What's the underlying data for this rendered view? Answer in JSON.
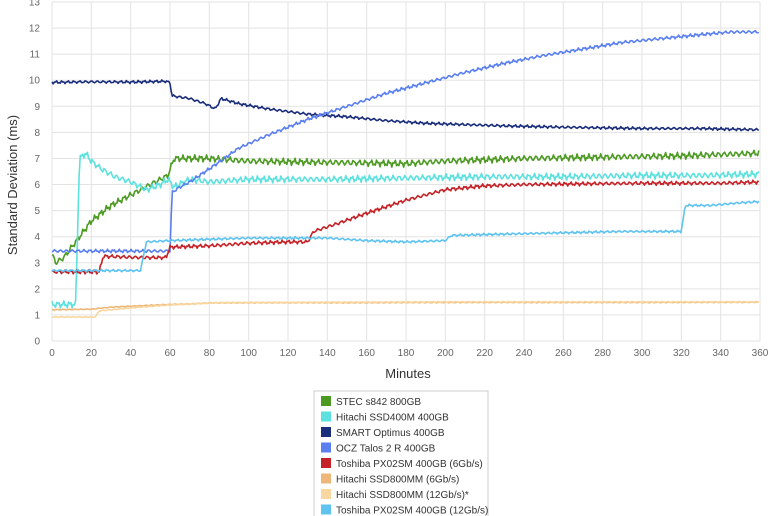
{
  "chart_data": {
    "type": "line",
    "title": "",
    "xlabel": "Minutes",
    "ylabel": "Standard Deviation (ms)",
    "xlim": [
      0,
      360
    ],
    "ylim": [
      0,
      13
    ],
    "xticks": [
      0,
      20,
      40,
      60,
      80,
      100,
      120,
      140,
      160,
      180,
      200,
      220,
      240,
      260,
      280,
      300,
      320,
      340,
      360
    ],
    "yticks": [
      0,
      1,
      2,
      3,
      4,
      5,
      6,
      7,
      8,
      9,
      10,
      11,
      12,
      13
    ],
    "grid": true,
    "legend_position": "bottom",
    "series": [
      {
        "name": "STEC s842 800GB",
        "color": "#4c9a22",
        "noise": 0.14,
        "points": [
          [
            0,
            3.3
          ],
          [
            2,
            3.0
          ],
          [
            6,
            3.2
          ],
          [
            10,
            3.6
          ],
          [
            14,
            4.0
          ],
          [
            20,
            4.6
          ],
          [
            30,
            5.2
          ],
          [
            40,
            5.6
          ],
          [
            50,
            6.0
          ],
          [
            59,
            6.35
          ],
          [
            62,
            7.0
          ],
          [
            80,
            7.0
          ],
          [
            100,
            6.9
          ],
          [
            140,
            6.85
          ],
          [
            180,
            6.8
          ],
          [
            200,
            6.9
          ],
          [
            240,
            7.0
          ],
          [
            280,
            7.05
          ],
          [
            320,
            7.1
          ],
          [
            360,
            7.2
          ]
        ]
      },
      {
        "name": "Hitachi SSD400M 400GB",
        "color": "#5ce1de",
        "noise": 0.14,
        "points": [
          [
            0,
            1.4
          ],
          [
            12,
            1.4
          ],
          [
            14,
            7.0
          ],
          [
            17,
            7.2
          ],
          [
            20,
            6.9
          ],
          [
            25,
            6.6
          ],
          [
            32,
            6.3
          ],
          [
            40,
            6.1
          ],
          [
            48,
            5.8
          ],
          [
            55,
            6.0
          ],
          [
            59,
            6.2
          ],
          [
            62,
            5.9
          ],
          [
            70,
            6.2
          ],
          [
            80,
            6.1
          ],
          [
            100,
            6.2
          ],
          [
            140,
            6.2
          ],
          [
            180,
            6.25
          ],
          [
            220,
            6.3
          ],
          [
            260,
            6.3
          ],
          [
            300,
            6.35
          ],
          [
            330,
            6.35
          ],
          [
            360,
            6.4
          ]
        ]
      },
      {
        "name": "SMART Optimus 400GB",
        "color": "#1a2d7a",
        "noise": 0.06,
        "points": [
          [
            0,
            9.92
          ],
          [
            20,
            9.94
          ],
          [
            40,
            9.93
          ],
          [
            58,
            9.96
          ],
          [
            60,
            9.9
          ],
          [
            61,
            9.4
          ],
          [
            70,
            9.3
          ],
          [
            78,
            9.1
          ],
          [
            83,
            8.9
          ],
          [
            86,
            9.3
          ],
          [
            95,
            9.1
          ],
          [
            110,
            8.9
          ],
          [
            130,
            8.7
          ],
          [
            150,
            8.6
          ],
          [
            170,
            8.45
          ],
          [
            190,
            8.35
          ],
          [
            210,
            8.3
          ],
          [
            230,
            8.25
          ],
          [
            260,
            8.2
          ],
          [
            300,
            8.15
          ],
          [
            330,
            8.15
          ],
          [
            360,
            8.1
          ]
        ]
      },
      {
        "name": "OCZ Talos 2 R 400GB",
        "color": "#5a7ff0",
        "noise": 0.07,
        "points": [
          [
            0,
            3.45
          ],
          [
            40,
            3.45
          ],
          [
            60,
            3.45
          ],
          [
            61,
            5.7
          ],
          [
            65,
            5.9
          ],
          [
            70,
            6.1
          ],
          [
            80,
            6.6
          ],
          [
            95,
            7.4
          ],
          [
            110,
            7.9
          ],
          [
            130,
            8.5
          ],
          [
            150,
            9.0
          ],
          [
            170,
            9.5
          ],
          [
            190,
            9.9
          ],
          [
            210,
            10.3
          ],
          [
            230,
            10.65
          ],
          [
            250,
            10.95
          ],
          [
            270,
            11.2
          ],
          [
            290,
            11.45
          ],
          [
            310,
            11.6
          ],
          [
            330,
            11.75
          ],
          [
            345,
            11.85
          ],
          [
            360,
            11.85
          ]
        ]
      },
      {
        "name": "Toshiba PX02SM 400GB (6Gb/s)",
        "color": "#c42227",
        "noise": 0.08,
        "points": [
          [
            0,
            2.65
          ],
          [
            24,
            2.65
          ],
          [
            26,
            3.25
          ],
          [
            45,
            3.2
          ],
          [
            58,
            3.2
          ],
          [
            60,
            3.6
          ],
          [
            80,
            3.65
          ],
          [
            100,
            3.75
          ],
          [
            120,
            3.8
          ],
          [
            130,
            3.8
          ],
          [
            133,
            4.2
          ],
          [
            145,
            4.5
          ],
          [
            160,
            4.9
          ],
          [
            180,
            5.4
          ],
          [
            200,
            5.8
          ],
          [
            220,
            5.95
          ],
          [
            240,
            6.0
          ],
          [
            260,
            6.02
          ],
          [
            300,
            6.05
          ],
          [
            340,
            6.05
          ],
          [
            360,
            6.1
          ]
        ]
      },
      {
        "name": "Hitachi SSD800MM (6Gb/s)",
        "color": "#edb77a",
        "noise": 0.02,
        "points": [
          [
            0,
            1.2
          ],
          [
            20,
            1.22
          ],
          [
            30,
            1.3
          ],
          [
            45,
            1.35
          ],
          [
            60,
            1.4
          ],
          [
            70,
            1.42
          ],
          [
            80,
            1.46
          ],
          [
            100,
            1.47
          ],
          [
            150,
            1.47
          ],
          [
            200,
            1.48
          ],
          [
            260,
            1.48
          ],
          [
            310,
            1.48
          ],
          [
            360,
            1.49
          ]
        ]
      },
      {
        "name": "Hitachi SSD800MM (12Gb/s)*",
        "color": "#f8d7a0",
        "noise": 0.02,
        "points": [
          [
            0,
            0.92
          ],
          [
            22,
            0.92
          ],
          [
            24,
            1.15
          ],
          [
            30,
            1.2
          ],
          [
            45,
            1.3
          ],
          [
            60,
            1.38
          ],
          [
            75,
            1.44
          ],
          [
            85,
            1.47
          ],
          [
            120,
            1.48
          ],
          [
            200,
            1.5
          ],
          [
            300,
            1.5
          ],
          [
            360,
            1.5
          ]
        ]
      },
      {
        "name": "Toshiba PX02SM 400GB (12Gb/s)",
        "color": "#5fc3ef",
        "noise": 0.05,
        "points": [
          [
            0,
            2.7
          ],
          [
            24,
            2.7
          ],
          [
            26,
            2.7
          ],
          [
            45,
            2.7
          ],
          [
            48,
            3.8
          ],
          [
            60,
            3.85
          ],
          [
            80,
            3.9
          ],
          [
            100,
            3.95
          ],
          [
            120,
            3.95
          ],
          [
            140,
            3.95
          ],
          [
            160,
            3.85
          ],
          [
            180,
            3.8
          ],
          [
            200,
            3.85
          ],
          [
            203,
            4.05
          ],
          [
            230,
            4.1
          ],
          [
            260,
            4.15
          ],
          [
            290,
            4.2
          ],
          [
            320,
            4.2
          ],
          [
            322,
            5.2
          ],
          [
            335,
            5.2
          ],
          [
            350,
            5.3
          ],
          [
            360,
            5.35
          ]
        ]
      }
    ]
  }
}
